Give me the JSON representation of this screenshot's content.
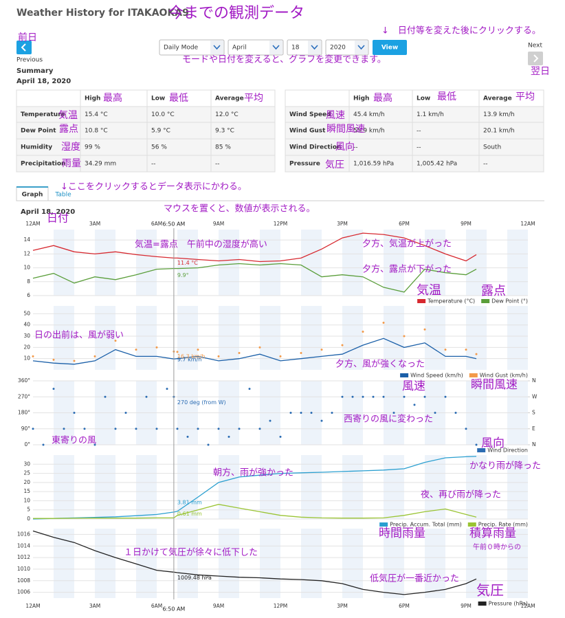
{
  "header": {
    "title": "Weather History for ITAKAOKA9"
  },
  "controls": {
    "previous": "Previous",
    "next": "Next",
    "dropdowns": [
      "Daily Mode",
      "April",
      "18",
      "2020"
    ],
    "view": "View"
  },
  "summary": {
    "title": "Summary",
    "date": "April 18, 2020",
    "tables": [
      {
        "headers": [
          "High",
          "Low",
          "Average"
        ],
        "rows": [
          [
            "Temperature",
            "15.4 °C",
            "10.0 °C",
            "12.0 °C"
          ],
          [
            "Dew Point",
            "10.8 °C",
            "5.9 °C",
            "9.3 °C"
          ],
          [
            "Humidity",
            "99 %",
            "56 %",
            "85 %"
          ],
          [
            "Precipitation",
            "34.29 mm",
            "--",
            "--"
          ]
        ]
      },
      {
        "headers": [
          "High",
          "Low",
          "Average"
        ],
        "rows": [
          [
            "Wind Speed",
            "45.4 km/h",
            "1.1 km/h",
            "13.9 km/h"
          ],
          [
            "Wind Gust",
            "55.9 km/h",
            "--",
            "20.1 km/h"
          ],
          [
            "Wind Direction",
            "--",
            "--",
            "South"
          ],
          [
            "Pressure",
            "1,016.59 hPa",
            "1,005.42 hPa",
            "--"
          ]
        ]
      }
    ]
  },
  "tabs": [
    "Graph",
    "Table"
  ],
  "graph_date": "April 18, 2020",
  "x_axis": {
    "xlim": [
      0,
      24
    ],
    "xticks": [
      {
        "value": 0,
        "label": "12AM"
      },
      {
        "value": 3,
        "label": "3AM"
      },
      {
        "value": 6,
        "label": "6AM"
      },
      {
        "value": 9,
        "label": "9AM"
      },
      {
        "value": 12,
        "label": "12PM"
      },
      {
        "value": 15,
        "label": "3PM"
      },
      {
        "value": 18,
        "label": "6PM"
      },
      {
        "value": 21,
        "label": "9PM"
      },
      {
        "value": 24,
        "label": "12AM"
      }
    ]
  },
  "cursor": {
    "value": 6.83,
    "label": "6:50 AM"
  },
  "chart_data": [
    {
      "type": "line",
      "x": [
        0,
        1,
        2,
        3,
        4,
        5,
        6,
        6.83,
        7,
        8,
        9,
        10,
        11,
        12,
        13,
        14,
        15,
        16,
        17,
        18,
        19,
        20,
        21,
        21.5
      ],
      "ylim": [
        6,
        15.5
      ],
      "yticks": [
        6,
        8,
        10,
        12,
        14
      ],
      "grid": true,
      "series": [
        {
          "name": "Temperature (°C)",
          "color": "#d7282f",
          "values": [
            12.5,
            13.2,
            12.3,
            12.0,
            12.3,
            11.9,
            11.6,
            11.4,
            11.4,
            11.2,
            11.0,
            11.2,
            10.9,
            11.0,
            11.4,
            12.7,
            14.3,
            15.0,
            14.8,
            14.3,
            13.2,
            12.0,
            11.0,
            11.9
          ],
          "cursor_label": "11.4 °C"
        },
        {
          "name": "Dew Point (°)",
          "color": "#5a9e3a",
          "values": [
            8.5,
            9.2,
            7.8,
            8.7,
            8.3,
            9.0,
            9.8,
            9.9,
            9.9,
            10.0,
            10.4,
            10.6,
            10.4,
            10.6,
            10.4,
            8.7,
            9.0,
            8.7,
            7.2,
            6.5,
            9.8,
            9.3,
            9.0,
            9.8
          ],
          "cursor_label": "9.9°"
        }
      ]
    },
    {
      "type": "line",
      "x": [
        0,
        1,
        2,
        3,
        4,
        5,
        6,
        6.83,
        7,
        8,
        9,
        10,
        11,
        12,
        13,
        14,
        15,
        16,
        17,
        18,
        19,
        20,
        21,
        21.5
      ],
      "ylim": [
        0,
        57
      ],
      "yticks": [
        10,
        20,
        30,
        40,
        50
      ],
      "grid": true,
      "series": [
        {
          "name": "Wind Speed (km/h)",
          "color": "#1a5fa8",
          "values": [
            8,
            6,
            5,
            8,
            18,
            12,
            12,
            9.7,
            10,
            12,
            8,
            10,
            14,
            8,
            10,
            12,
            14,
            22,
            28,
            20,
            24,
            12,
            12,
            10
          ],
          "cursor_label": "9.7 km/h"
        },
        {
          "name": "Wind Gust (km/h)",
          "color": "#f39a4a",
          "mode": "markers",
          "values": [
            12,
            9,
            8,
            12,
            26,
            18,
            20,
            16.3,
            16,
            18,
            12,
            15,
            20,
            12,
            15,
            18,
            22,
            34,
            42,
            30,
            36,
            18,
            18,
            14
          ],
          "cursor_label": "16.3 km/h"
        }
      ]
    },
    {
      "type": "scatter",
      "x": [
        0,
        0.5,
        1,
        1.5,
        2,
        2.5,
        3,
        3.5,
        4,
        4.5,
        5,
        5.5,
        6,
        6.5,
        6.83,
        7,
        7.5,
        8,
        8.5,
        9,
        9.5,
        10,
        10.5,
        11,
        11.5,
        12,
        12.5,
        13,
        13.5,
        14,
        14.5,
        15,
        15.5,
        16,
        16.5,
        17,
        17.5,
        18,
        18.5,
        19,
        19.5,
        20,
        20.5,
        21,
        21.5
      ],
      "ylim": [
        0,
        360
      ],
      "yticks": [
        {
          "value": 0,
          "label": "0°"
        },
        {
          "value": 90,
          "label": "90°"
        },
        {
          "value": 180,
          "label": "180°"
        },
        {
          "value": 270,
          "label": "270°"
        },
        {
          "value": 360,
          "label": "360°"
        }
      ],
      "y2lim": [
        0,
        360
      ],
      "y2ticks": [
        {
          "value": 0,
          "label": "N"
        },
        {
          "value": 90,
          "label": "E"
        },
        {
          "value": 180,
          "label": "S"
        },
        {
          "value": 270,
          "label": "W"
        },
        {
          "value": 360,
          "label": "N"
        }
      ],
      "grid": true,
      "series": [
        {
          "name": "Wind Direction",
          "color": "#2b6cb3",
          "values": [
            90,
            0,
            315,
            90,
            180,
            90,
            0,
            270,
            90,
            180,
            90,
            270,
            90,
            315,
            270,
            90,
            45,
            90,
            0,
            90,
            45,
            90,
            315,
            90,
            135,
            45,
            180,
            180,
            180,
            135,
            180,
            270,
            270,
            270,
            270,
            270,
            180,
            270,
            225,
            270,
            180,
            270,
            180,
            90,
            0
          ],
          "cursor_label": "270 deg (from W)"
        }
      ]
    },
    {
      "type": "line",
      "x": [
        0,
        1,
        2,
        3,
        4,
        5,
        6,
        6.83,
        7,
        8,
        9,
        10,
        11,
        12,
        13,
        14,
        15,
        16,
        17,
        18,
        19,
        20,
        21,
        21.5
      ],
      "ylim": [
        0,
        35
      ],
      "yticks": [
        0,
        5,
        10,
        15,
        20,
        25,
        30
      ],
      "grid": true,
      "series": [
        {
          "name": "Precip. Accum. Total (mm)",
          "color": "#2a9fd0",
          "values": [
            0,
            0.3,
            0.6,
            0.9,
            1.2,
            1.8,
            2.5,
            3.81,
            4.2,
            12,
            20,
            23,
            24,
            25,
            25.3,
            25.6,
            26,
            26.4,
            26.8,
            27.5,
            31,
            33.5,
            34.1,
            34.29
          ],
          "cursor_label": "3.81 mm"
        },
        {
          "name": "Precip. Rate (mm)",
          "color": "#9ac433",
          "values": [
            0.3,
            0.3,
            0.4,
            0.5,
            0.5,
            0.5,
            0.6,
            0.61,
            2,
            5,
            8,
            6,
            4,
            2,
            1,
            0.6,
            0.5,
            0.5,
            0.6,
            2,
            4,
            5.5,
            2.5,
            1
          ],
          "cursor_label": "0.61 mm"
        }
      ]
    },
    {
      "type": "line",
      "x": [
        0,
        1,
        2,
        3,
        4,
        5,
        6,
        6.83,
        7,
        8,
        9,
        10,
        11,
        12,
        13,
        14,
        15,
        16,
        17,
        18,
        19,
        20,
        21,
        21.5
      ],
      "ylim": [
        1005,
        1017
      ],
      "yticks": [
        1006,
        1008,
        1010,
        1012,
        1014,
        1016
      ],
      "grid": true,
      "series": [
        {
          "name": "Pressure (hPa)",
          "color": "#222222",
          "values": [
            1016.6,
            1015.5,
            1014.6,
            1013.2,
            1012,
            1010.9,
            1009.8,
            1009.48,
            1009.4,
            1009,
            1008.8,
            1008.6,
            1008.5,
            1008.3,
            1008.2,
            1008,
            1007.5,
            1006.5,
            1006,
            1005.6,
            1006,
            1006.5,
            1007.5,
            1008.3
          ],
          "cursor_label": "1009.48 hPa"
        }
      ]
    }
  ],
  "annotations": [
    "今までの観測データ",
    "前日",
    "↓　日付等を変えた後にクリックする。",
    "モードや日付を変えると、グラフを変更できます。",
    "翌日",
    "最高",
    "最低",
    "平均",
    "気温",
    "露点",
    "湿度",
    "雨量",
    "最高",
    "最低",
    "平均",
    "風速",
    "瞬間風速",
    "風向",
    "気圧",
    "↓ここをクリックするとデータ表示にかわる。",
    "マウスを置くと、数値が表示される。",
    "日付",
    "気温=露点　午前中の湿度が高い",
    "夕方、気温が上がった",
    "夕方、露点が下がった",
    "気温",
    "露点",
    "日の出前は、風が弱い",
    "夕方、風が強くなった",
    "風速",
    "瞬間風速",
    "西寄りの風に変わった",
    "東寄りの風",
    "風向",
    "朝方、雨が強かった",
    "かなり雨が降った",
    "夜、再び雨が降った",
    "時間雨量",
    "積算雨量",
    "午前０時からの",
    "１日かけて気圧が徐々に低下した",
    "低気圧が一番近かった",
    "気圧"
  ]
}
